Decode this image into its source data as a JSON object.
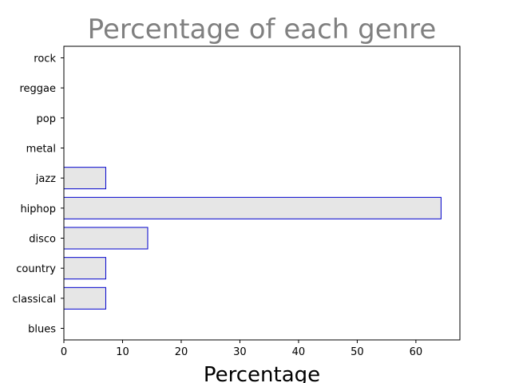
{
  "chart_data": {
    "type": "bar",
    "orientation": "horizontal",
    "title": "Percentage of each genre",
    "xlabel": "Percentage",
    "ylabel": "",
    "categories": [
      "blues",
      "classical",
      "country",
      "disco",
      "hiphop",
      "jazz",
      "metal",
      "pop",
      "reggae",
      "rock"
    ],
    "values": [
      0,
      7.14,
      7.14,
      14.29,
      64.29,
      7.14,
      0,
      0,
      0,
      0
    ],
    "xlim": [
      0,
      67.5
    ],
    "xticks": [
      0,
      10,
      20,
      30,
      40,
      50,
      60
    ],
    "grid": false,
    "legend": "none",
    "colors": {
      "bar_fill": "#e6e6e6",
      "bar_edge": "#0000cc",
      "title": "#808080"
    }
  }
}
